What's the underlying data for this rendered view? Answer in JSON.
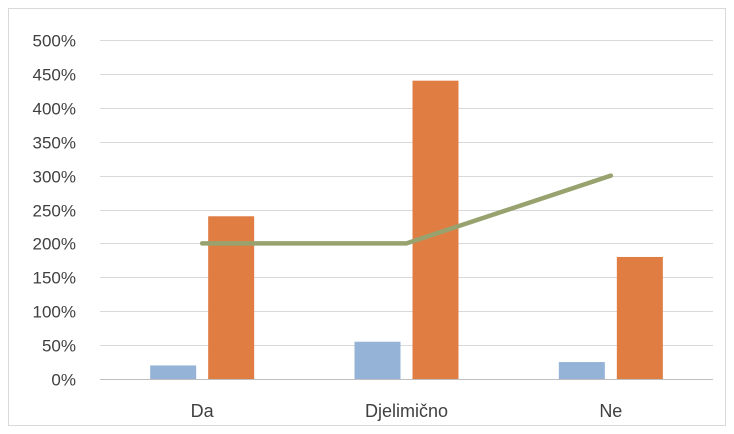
{
  "chart_data": {
    "type": "bar",
    "title": "",
    "xlabel": "",
    "ylabel": "",
    "categories": [
      "Da",
      "Djelimično",
      "Ne"
    ],
    "ylim": [
      0,
      500
    ],
    "yticks": [
      0,
      50,
      100,
      150,
      200,
      250,
      300,
      350,
      400,
      450,
      500
    ],
    "ytick_labels": [
      "0%",
      "50%",
      "100%",
      "150%",
      "200%",
      "250%",
      "300%",
      "350%",
      "400%",
      "450%",
      "500%"
    ],
    "value_unit": "percent",
    "grid": true,
    "legend": "none",
    "series": [
      {
        "type": "bar",
        "color": "#95b3d7",
        "values": [
          20,
          55,
          25
        ]
      },
      {
        "type": "bar",
        "color": "#e07d43",
        "values": [
          240,
          440,
          180
        ]
      },
      {
        "type": "line",
        "color": "#98a26f",
        "values": [
          200,
          200,
          300
        ]
      }
    ]
  }
}
